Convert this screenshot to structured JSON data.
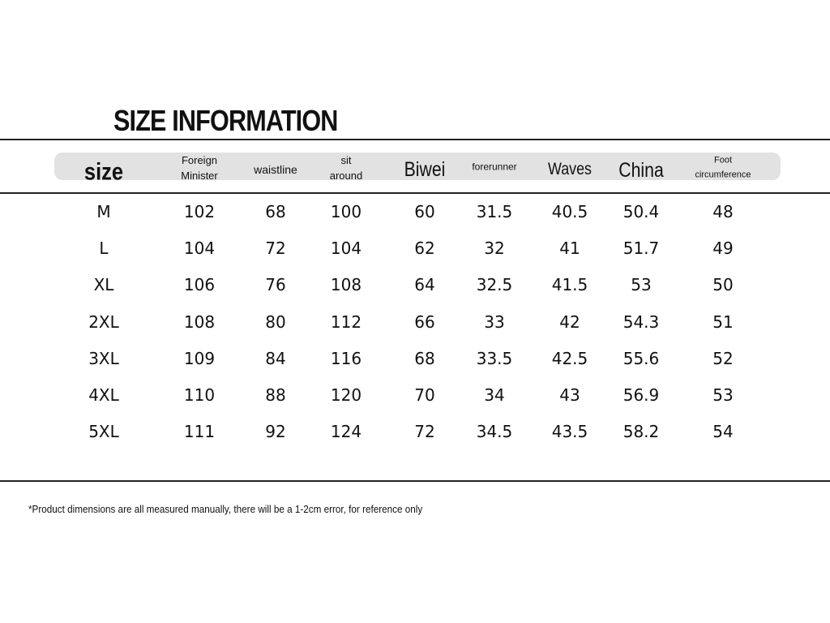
{
  "title": "SIZE INFORMATION",
  "table": {
    "header": [
      "size",
      "Foreign Minister",
      "waistline",
      "sit around",
      "Biwei",
      "forerunner",
      "Waves",
      "China",
      "Foot circumference"
    ],
    "rows": [
      [
        "M",
        102,
        68,
        100,
        60,
        31.5,
        40.5,
        50.4,
        48
      ],
      [
        "L",
        104,
        72,
        104,
        62,
        32,
        41,
        51.7,
        49
      ],
      [
        "XL",
        106,
        76,
        108,
        64,
        32.5,
        41.5,
        53,
        50
      ],
      [
        "2XL",
        108,
        80,
        112,
        66,
        33,
        42,
        54.3,
        51
      ],
      [
        "3XL",
        109,
        84,
        116,
        68,
        33.5,
        42.5,
        55.6,
        52
      ],
      [
        "4XL",
        110,
        88,
        120,
        70,
        34,
        43,
        56.9,
        53
      ],
      [
        "5XL",
        111,
        92,
        124,
        72,
        34.5,
        43.5,
        58.2,
        54
      ]
    ]
  },
  "footnote": "*Product dimensions are all measured manually, there will be a 1-2cm error, for reference only"
}
